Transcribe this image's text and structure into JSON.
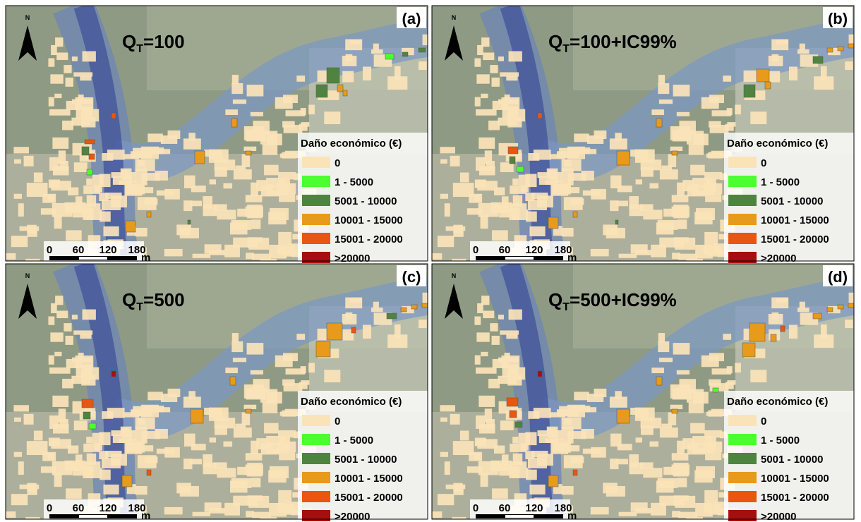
{
  "panels": [
    {
      "label": "(a)",
      "title": {
        "main": "Q",
        "sub": "T",
        "rest": "=100"
      }
    },
    {
      "label": "(b)",
      "title": {
        "main": "Q",
        "sub": "T",
        "rest": "=100+IC99%"
      }
    },
    {
      "label": "(c)",
      "title": {
        "main": "Q",
        "sub": "T",
        "rest": "=500"
      }
    },
    {
      "label": "(d)",
      "title": {
        "main": "Q",
        "sub": "T",
        "rest": "=500+IC99%"
      }
    }
  ],
  "north": "N",
  "legend": {
    "title": "Daño económico (€)",
    "items": [
      {
        "label": "0",
        "color": "#fbe3b8"
      },
      {
        "label": "1 - 5000",
        "color": "#4cff2e"
      },
      {
        "label": "5001 - 10000",
        "color": "#4f8440"
      },
      {
        "label": "10001 - 15000",
        "color": "#e89a1a"
      },
      {
        "label": "15001 - 20000",
        "color": "#e8560f"
      },
      {
        "label": ">20000",
        "color": "#a50f0f"
      }
    ]
  },
  "scale": {
    "ticks": [
      "0",
      "60",
      "120",
      "180"
    ],
    "unit": "m"
  }
}
